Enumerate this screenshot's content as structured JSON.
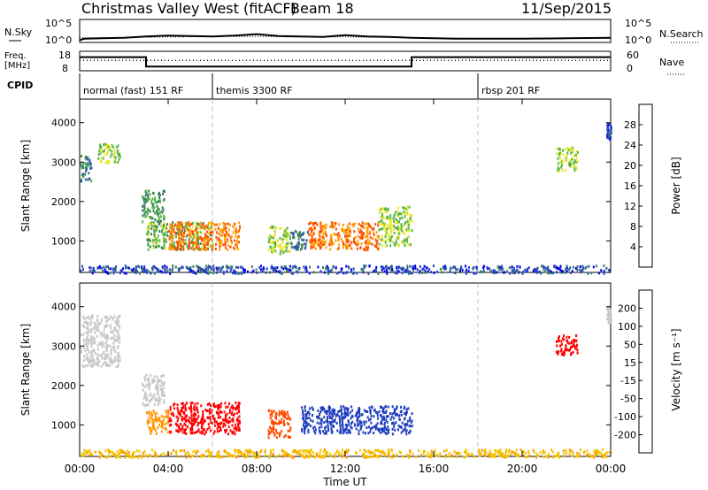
{
  "header": {
    "title": "Christmas Valley West (fitACF)",
    "beam": "Beam 18",
    "date": "11/Sep/2015"
  },
  "chart_data": [
    {
      "type": "line",
      "panel": "noise",
      "left_label": "N.Sky",
      "right_label": "N.Search",
      "left_ticks": [
        "10^5",
        "10^0"
      ],
      "right_ticks": [
        "10^5",
        "10^0"
      ],
      "ylim": [
        0,
        5
      ],
      "series": [
        {
          "values": [
            [
              0,
              0.5
            ],
            [
              0.2,
              0.8
            ],
            [
              1,
              0.9
            ],
            [
              2,
              1.0
            ],
            [
              3,
              1.3
            ],
            [
              4,
              1.5
            ],
            [
              5,
              1.4
            ],
            [
              6,
              1.3
            ],
            [
              7,
              1.5
            ],
            [
              8,
              1.8
            ],
            [
              9,
              1.4
            ],
            [
              10,
              1.3
            ],
            [
              11,
              1.2
            ],
            [
              12,
              1.6
            ],
            [
              13,
              1.3
            ],
            [
              14,
              1.2
            ],
            [
              15,
              1.0
            ],
            [
              16,
              0.9
            ],
            [
              17,
              0.8
            ],
            [
              18,
              0.8
            ],
            [
              20,
              0.8
            ],
            [
              22,
              0.9
            ],
            [
              24,
              1.0
            ]
          ]
        },
        {
          "values": [
            [
              0,
              1.0
            ],
            [
              2,
              1.1
            ],
            [
              4,
              1.2
            ],
            [
              6,
              1.3
            ],
            [
              8,
              1.3
            ],
            [
              10,
              1.2
            ],
            [
              12,
              1.2
            ],
            [
              14,
              1.1
            ],
            [
              16,
              1.0
            ],
            [
              18,
              0.9
            ],
            [
              20,
              0.9
            ],
            [
              22,
              1.0
            ],
            [
              24,
              1.0
            ]
          ]
        }
      ]
    },
    {
      "type": "line",
      "panel": "frequency",
      "left_label": "Freq. [MHz]",
      "right_label": "Nave",
      "left_ticks": [
        "18",
        "8"
      ],
      "right_ticks": [
        "60",
        "0"
      ],
      "series": [
        {
          "values": [
            [
              0,
              15
            ],
            [
              3,
              15
            ],
            [
              3,
              10.2
            ],
            [
              15,
              10.2
            ],
            [
              15,
              15
            ],
            [
              24,
              15
            ]
          ]
        },
        {
          "values": [
            [
              0,
              32
            ],
            [
              24,
              32
            ]
          ]
        }
      ]
    },
    {
      "type": "table",
      "panel": "cpid",
      "label": "CPID",
      "segments": [
        {
          "start": 0,
          "end": 6,
          "text": "normal (fast) 151 RF"
        },
        {
          "start": 6,
          "end": 18,
          "text": "themis 3300 RF"
        },
        {
          "start": 18,
          "end": 24,
          "text": "rbsp 201 RF"
        }
      ]
    },
    {
      "type": "heatmap",
      "panel": "power",
      "ylabel": "Slant Range [km]",
      "ylim": [
        200,
        4600
      ],
      "y_ticks": [
        1000,
        2000,
        3000,
        4000
      ],
      "colorbar": {
        "label": "Power [dB]",
        "ticks": [
          4,
          8,
          12,
          16,
          20,
          24,
          28
        ],
        "colors": [
          "#0000e6",
          "#2a4bc0",
          "#3a7f5c",
          "#57b548",
          "#e9e62a",
          "#ff9d00",
          "#ff4b00",
          "#ff0000"
        ]
      },
      "regions": [
        {
          "t": [
            0.0,
            0.5
          ],
          "r": [
            2500,
            3200
          ],
          "value": 12
        },
        {
          "t": [
            0.8,
            1.8
          ],
          "r": [
            3000,
            3500
          ],
          "value": 18
        },
        {
          "t": [
            2.8,
            3.8
          ],
          "r": [
            1500,
            2300
          ],
          "value": 14
        },
        {
          "t": [
            3.0,
            6.0
          ],
          "r": [
            800,
            1500
          ],
          "value": 16
        },
        {
          "t": [
            4.0,
            7.2
          ],
          "r": [
            800,
            1500
          ],
          "value": 26
        },
        {
          "t": [
            8.5,
            9.5
          ],
          "r": [
            700,
            1400
          ],
          "value": 18
        },
        {
          "t": [
            9.5,
            10.3
          ],
          "r": [
            800,
            1300
          ],
          "value": 10
        },
        {
          "t": [
            10.3,
            13.5
          ],
          "r": [
            800,
            1500
          ],
          "value": 26
        },
        {
          "t": [
            13.5,
            15.0
          ],
          "r": [
            900,
            1900
          ],
          "value": 18
        },
        {
          "t": [
            0.0,
            24.0
          ],
          "r": [
            200,
            400
          ],
          "value": 8
        },
        {
          "t": [
            21.5,
            22.5
          ],
          "r": [
            2800,
            3400
          ],
          "value": 18
        },
        {
          "t": [
            23.8,
            24.0
          ],
          "r": [
            3600,
            4000
          ],
          "value": 8
        }
      ]
    },
    {
      "type": "heatmap",
      "panel": "velocity",
      "ylabel": "Slant Range [km]",
      "xlabel": "Time UT",
      "ylim": [
        200,
        4600
      ],
      "y_ticks": [
        1000,
        2000,
        3000,
        4000
      ],
      "x_ticks": [
        "00:00",
        "04:00",
        "08:00",
        "12:00",
        "16:00",
        "20:00",
        "00:00"
      ],
      "colorbar": {
        "label": "Velocity [m s⁻¹]",
        "ticks": [
          "200",
          "100",
          "50",
          "15",
          "-15",
          "-50",
          "-100",
          "-200"
        ],
        "colors": [
          "#1f3fbf",
          "#2f6fb0",
          "#4a9a60",
          "#7fcf3a",
          "#c8c8c8",
          "#f5c400",
          "#ff9400",
          "#ff4b00",
          "#ff0000"
        ]
      },
      "regions": [
        {
          "t": [
            0.0,
            1.8
          ],
          "r": [
            2500,
            3800
          ],
          "value": 0
        },
        {
          "t": [
            2.8,
            3.8
          ],
          "r": [
            1500,
            2300
          ],
          "value": 0
        },
        {
          "t": [
            3.0,
            4.0
          ],
          "r": [
            800,
            1400
          ],
          "value": -40
        },
        {
          "t": [
            4.0,
            7.2
          ],
          "r": [
            800,
            1600
          ],
          "value": -200
        },
        {
          "t": [
            8.5,
            9.5
          ],
          "r": [
            700,
            1400
          ],
          "value": -100
        },
        {
          "t": [
            10.0,
            15.0
          ],
          "r": [
            800,
            1500
          ],
          "value": 200
        },
        {
          "t": [
            0.0,
            24.0
          ],
          "r": [
            200,
            400
          ],
          "value": -30
        },
        {
          "t": [
            21.5,
            22.5
          ],
          "r": [
            2800,
            3300
          ],
          "value": -200
        },
        {
          "t": [
            23.8,
            24.0
          ],
          "r": [
            3600,
            4000
          ],
          "value": 0
        }
      ]
    }
  ]
}
